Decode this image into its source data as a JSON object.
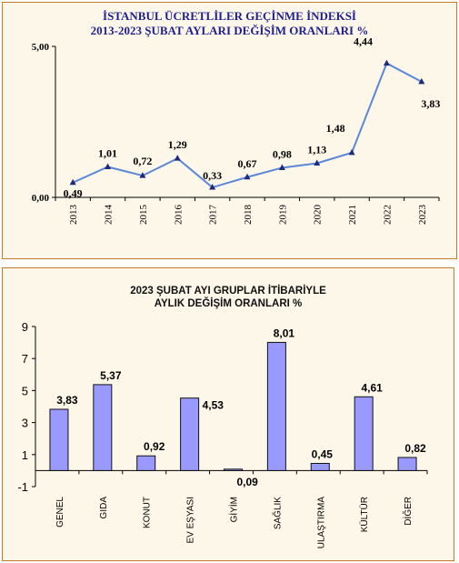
{
  "chart_data": [
    {
      "type": "line",
      "title_line1": "İSTANBUL ÜCRETLİLER GEÇİNME İNDEKSİ",
      "title_line2": "2013-2023 ŞUBAT AYLARI DEĞİŞİM ORANLARI %",
      "x": [
        "2013",
        "2014",
        "2015",
        "2016",
        "2017",
        "2018",
        "2019",
        "2020",
        "2021",
        "2022",
        "2023"
      ],
      "values": [
        0.49,
        1.01,
        0.72,
        1.29,
        0.33,
        0.67,
        0.98,
        1.13,
        1.48,
        4.44,
        3.83
      ],
      "labels": [
        "0,49",
        "1,01",
        "0,72",
        "1,29",
        "0,33",
        "0,67",
        "0,98",
        "1,13",
        "1,48",
        "4,44",
        "3,83"
      ],
      "y_ticks": [
        "0,00",
        "5,00"
      ],
      "ylim": [
        0,
        5
      ],
      "line_color": "#5b87d6"
    },
    {
      "type": "bar",
      "title_line1": "2023 ŞUBAT AYI GRUPLAR İTİBARİYLE",
      "title_line2": "AYLIK DEĞİŞİM ORANLARI %",
      "categories": [
        "GENEL",
        "GIDA",
        "KONUT",
        "EV EŞYASI",
        "GİYİM",
        "SAĞLIK",
        "ULAŞTIRMA",
        "KÜLTÜR",
        "DİĞER"
      ],
      "values": [
        3.83,
        5.37,
        0.92,
        4.53,
        0.09,
        8.01,
        0.45,
        4.61,
        0.82
      ],
      "labels": [
        "3,83",
        "5,37",
        "0,92",
        "4,53",
        "0,09",
        "8,01",
        "0,45",
        "4,61",
        "0,82"
      ],
      "y_ticks": [
        "-1",
        "1",
        "3",
        "5",
        "7",
        "9"
      ],
      "ylim": [
        -1,
        9
      ],
      "bar_color": "#9999ff"
    }
  ]
}
